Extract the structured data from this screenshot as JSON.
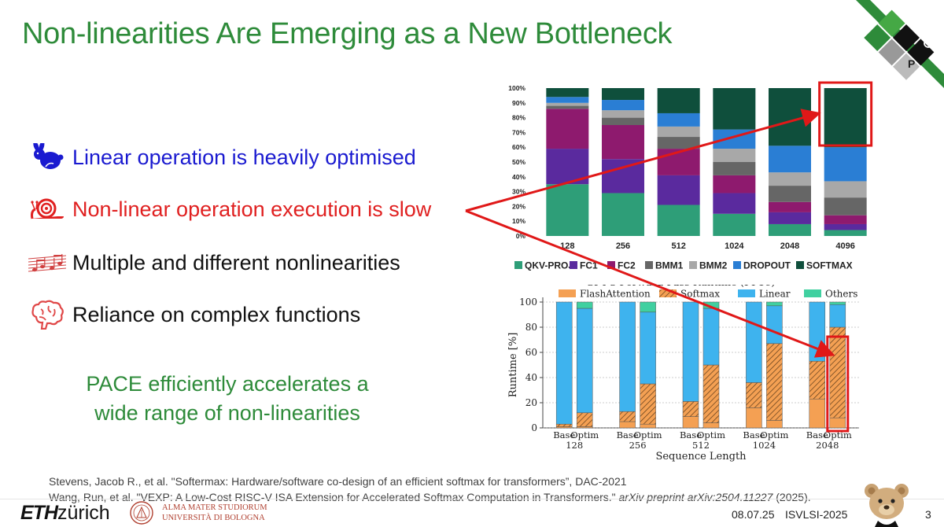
{
  "slide": {
    "title": "Non-linearities Are Emerging as a New Bottleneck",
    "bullets": [
      {
        "icon": "rabbit-icon",
        "text": "Linear operation is heavily optimised",
        "color": "#1a1ad0"
      },
      {
        "icon": "snail-icon",
        "text": "Non-linear operation execution is slow",
        "color": "#e02020"
      },
      {
        "icon": "music-notes-icon",
        "text": "Multiple and different nonlinearities",
        "color": "#111111"
      },
      {
        "icon": "brain-icon",
        "text": "Reliance on complex functions",
        "color": "#111111"
      }
    ],
    "pace_line1": "PACE efficiently accelerates a",
    "pace_line2": "wide range of non-linearities",
    "refs": {
      "ref1": "Stevens, Jacob R., et al. \"Softermax: Hardware/software co-design of an efficient softmax for transformers”, DAC-2021",
      "ref2_plain": "Wang, Run, et al. \"VEXP: A Low-Cost RISC-V ISA Extension for Accelerated Softmax Computation in Transformers.\" ",
      "ref2_italic": "arXiv preprint arXiv:2504.11227",
      "ref2_tail": " (2025)."
    },
    "footer": {
      "eth_bold": "ETH",
      "eth_rest": "zürich",
      "uni_line1": "ALMA MATER STUDIORUM",
      "uni_line2": "UNIVERSITÀ DI BOLOGNA",
      "date": "08.07.25",
      "conference": "ISVLSI-2025",
      "page": "3"
    },
    "logo_letters": [
      "P",
      "P"
    ]
  },
  "chart_data": [
    {
      "type": "bar",
      "stacked": true,
      "categories": [
        "128",
        "256",
        "512",
        "1024",
        "2048",
        "4096"
      ],
      "yticks": [
        "0%",
        "10%",
        "20%",
        "30%",
        "40%",
        "50%",
        "60%",
        "70%",
        "80%",
        "90%",
        "100%"
      ],
      "series": [
        {
          "name": "QKV-PROJ",
          "color": "#2e9e78",
          "values": [
            35,
            29,
            21,
            15,
            8,
            4
          ]
        },
        {
          "name": "FC1",
          "color": "#5a2a9e",
          "values": [
            24,
            23,
            20,
            14,
            8,
            4
          ]
        },
        {
          "name": "FC2",
          "color": "#8e1a6e",
          "values": [
            27,
            23,
            18,
            12,
            7,
            6
          ]
        },
        {
          "name": "BMM1",
          "color": "#666666",
          "values": [
            2,
            5,
            8,
            9,
            11,
            12
          ]
        },
        {
          "name": "BMM2",
          "color": "#a8a8a8",
          "values": [
            2,
            5,
            7,
            9,
            9,
            11
          ]
        },
        {
          "name": "DROPOUT",
          "color": "#2a7ed4",
          "values": [
            4,
            7,
            9,
            13,
            18,
            23
          ]
        },
        {
          "name": "SOFTMAX",
          "color": "#0f4f3c",
          "values": [
            6,
            8,
            17,
            28,
            39,
            40
          ]
        }
      ],
      "highlight_category": "4096",
      "highlight_color": "#e01818"
    },
    {
      "type": "bar",
      "stacked": true,
      "title": "GPT-3 Forward Pass Runtime (FP16)",
      "xlabel": "Sequence Length",
      "ylabel": "Runtime [%]",
      "ylim": [
        0,
        100
      ],
      "yticks": [
        0,
        20,
        40,
        60,
        80,
        100
      ],
      "groups": [
        "128",
        "256",
        "512",
        "1024",
        "2048"
      ],
      "bar_labels": [
        "Base",
        "Optim"
      ],
      "legend": [
        "FlashAttention",
        "Softmax",
        "Linear",
        "Others"
      ],
      "legend_colors": {
        "FlashAttention": "#f4a053",
        "Softmax": "#f4a053",
        "Linear": "#3eb3ee",
        "Others": "#40d0a0"
      },
      "softmax_hatched": true,
      "bars": [
        {
          "group": "128",
          "bar": "Base",
          "FlashAttention": 1,
          "Softmax": 2,
          "Linear": 97,
          "Others": 0
        },
        {
          "group": "128",
          "bar": "Optim",
          "FlashAttention": 1,
          "Softmax": 11,
          "Linear": 83,
          "Others": 5
        },
        {
          "group": "256",
          "bar": "Base",
          "FlashAttention": 5,
          "Softmax": 8,
          "Linear": 87,
          "Others": 0
        },
        {
          "group": "256",
          "bar": "Optim",
          "FlashAttention": 3,
          "Softmax": 32,
          "Linear": 57,
          "Others": 8
        },
        {
          "group": "512",
          "bar": "Base",
          "FlashAttention": 9,
          "Softmax": 12,
          "Linear": 79,
          "Others": 0
        },
        {
          "group": "512",
          "bar": "Optim",
          "FlashAttention": 4,
          "Softmax": 46,
          "Linear": 45,
          "Others": 5
        },
        {
          "group": "1024",
          "bar": "Base",
          "FlashAttention": 16,
          "Softmax": 20,
          "Linear": 64,
          "Others": 0
        },
        {
          "group": "1024",
          "bar": "Optim",
          "FlashAttention": 6,
          "Softmax": 61,
          "Linear": 30,
          "Others": 3
        },
        {
          "group": "2048",
          "bar": "Base",
          "FlashAttention": 23,
          "Softmax": 30,
          "Linear": 47,
          "Others": 0
        },
        {
          "group": "2048",
          "bar": "Optim",
          "FlashAttention": 8,
          "Softmax": 72,
          "Linear": 18,
          "Others": 2
        }
      ],
      "highlight_bar": {
        "group": "2048",
        "bar": "Optim"
      },
      "highlight_color": "#e01818"
    }
  ]
}
